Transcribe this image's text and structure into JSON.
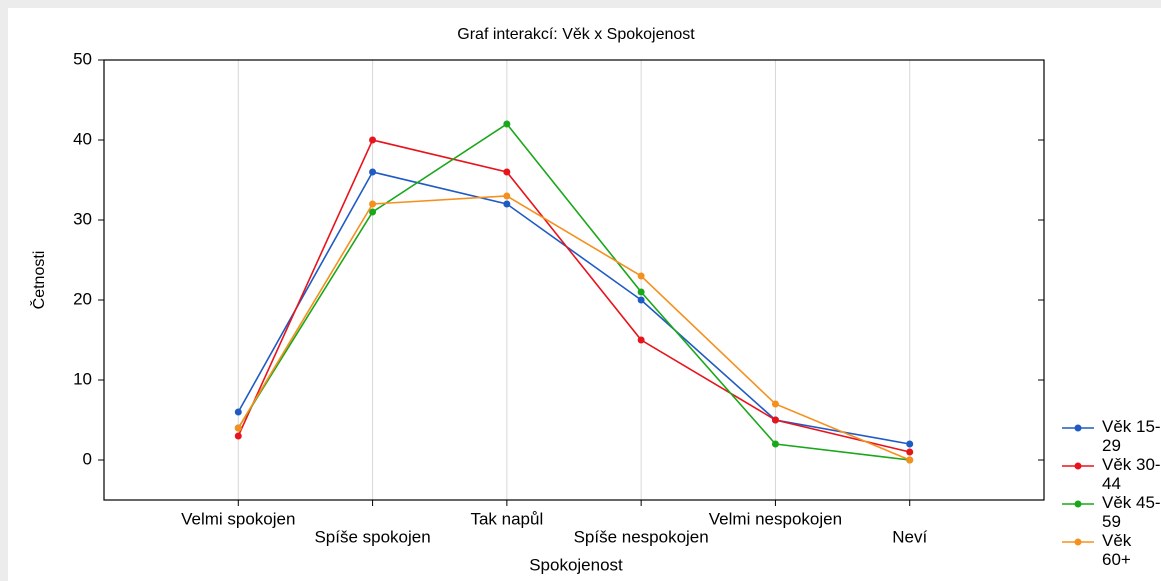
{
  "chart_data": {
    "type": "line",
    "title": "Graf interakcí: Věk x Spokojenost",
    "xlabel": "Spokojenost",
    "ylabel": "Četnosti",
    "categories": [
      "Velmi spokojen",
      "Spíše spokojen",
      "Tak napůl",
      "Spíše nespokojen",
      "Velmi nespokojen",
      "Neví"
    ],
    "series": [
      {
        "name": "Věk 15-29",
        "color": "#1f5bc4",
        "values": [
          6,
          36,
          32,
          20,
          5,
          2
        ]
      },
      {
        "name": "Věk 30-44",
        "color": "#e8141c",
        "values": [
          3,
          40,
          36,
          15,
          5,
          1
        ]
      },
      {
        "name": "Věk 45-59",
        "color": "#1aa71a",
        "values": [
          4,
          31,
          42,
          21,
          2,
          0
        ]
      },
      {
        "name": "Věk 60+",
        "color": "#f5901e",
        "values": [
          4,
          32,
          33,
          23,
          7,
          0
        ]
      }
    ],
    "ylim": [
      -5,
      50
    ],
    "yticks": [
      0,
      10,
      20,
      30,
      40,
      50
    ],
    "grid": true,
    "legend": "lower right"
  }
}
